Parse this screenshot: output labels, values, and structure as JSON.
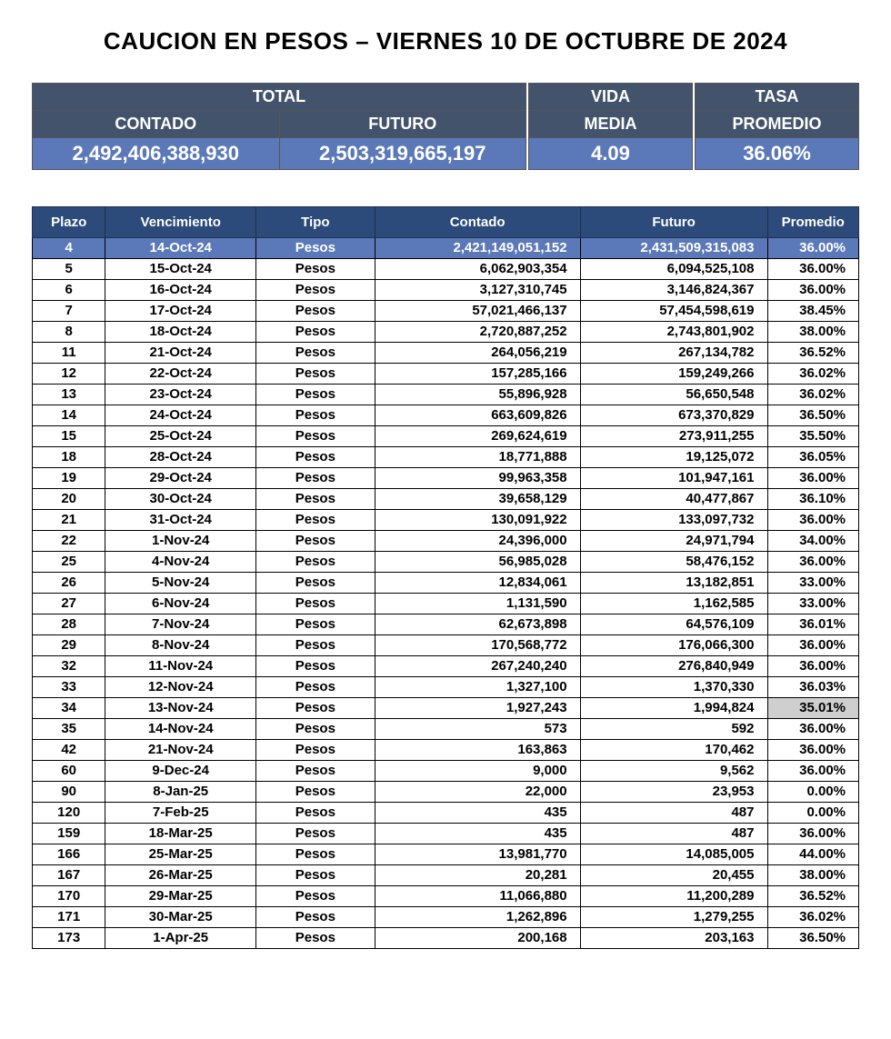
{
  "title": "CAUCION EN PESOS – VIERNES 10 DE OCTUBRE DE 2024",
  "colors": {
    "header_dark": "#42536b",
    "value_blue": "#5b79b8",
    "detail_header": "#2c4a7a",
    "gray_cell": "#cfcfcf",
    "text": "#000000",
    "white": "#ffffff"
  },
  "summary": {
    "labels": {
      "total": "TOTAL",
      "contado": "CONTADO",
      "futuro": "FUTURO",
      "vida": "VIDA",
      "media": "MEDIA",
      "tasa": "TASA",
      "promedio": "PROMEDIO"
    },
    "values": {
      "contado": "2,492,406,388,930",
      "futuro": "2,503,319,665,197",
      "vida_media": "4.09",
      "tasa_promedio": "36.06%"
    }
  },
  "detail": {
    "columns": [
      "Plazo",
      "Vencimiento",
      "Tipo",
      "Contado",
      "Futuro",
      "Promedio"
    ],
    "highlight_row_index": 0,
    "gray_promedio_row_index": 21,
    "rows": [
      [
        "4",
        "14-Oct-24",
        "Pesos",
        "2,421,149,051,152",
        "2,431,509,315,083",
        "36.00%"
      ],
      [
        "5",
        "15-Oct-24",
        "Pesos",
        "6,062,903,354",
        "6,094,525,108",
        "36.00%"
      ],
      [
        "6",
        "16-Oct-24",
        "Pesos",
        "3,127,310,745",
        "3,146,824,367",
        "36.00%"
      ],
      [
        "7",
        "17-Oct-24",
        "Pesos",
        "57,021,466,137",
        "57,454,598,619",
        "38.45%"
      ],
      [
        "8",
        "18-Oct-24",
        "Pesos",
        "2,720,887,252",
        "2,743,801,902",
        "38.00%"
      ],
      [
        "11",
        "21-Oct-24",
        "Pesos",
        "264,056,219",
        "267,134,782",
        "36.52%"
      ],
      [
        "12",
        "22-Oct-24",
        "Pesos",
        "157,285,166",
        "159,249,266",
        "36.02%"
      ],
      [
        "13",
        "23-Oct-24",
        "Pesos",
        "55,896,928",
        "56,650,548",
        "36.02%"
      ],
      [
        "14",
        "24-Oct-24",
        "Pesos",
        "663,609,826",
        "673,370,829",
        "36.50%"
      ],
      [
        "15",
        "25-Oct-24",
        "Pesos",
        "269,624,619",
        "273,911,255",
        "35.50%"
      ],
      [
        "18",
        "28-Oct-24",
        "Pesos",
        "18,771,888",
        "19,125,072",
        "36.05%"
      ],
      [
        "19",
        "29-Oct-24",
        "Pesos",
        "99,963,358",
        "101,947,161",
        "36.00%"
      ],
      [
        "20",
        "30-Oct-24",
        "Pesos",
        "39,658,129",
        "40,477,867",
        "36.10%"
      ],
      [
        "21",
        "31-Oct-24",
        "Pesos",
        "130,091,922",
        "133,097,732",
        "36.00%"
      ],
      [
        "22",
        "1-Nov-24",
        "Pesos",
        "24,396,000",
        "24,971,794",
        "34.00%"
      ],
      [
        "25",
        "4-Nov-24",
        "Pesos",
        "56,985,028",
        "58,476,152",
        "36.00%"
      ],
      [
        "26",
        "5-Nov-24",
        "Pesos",
        "12,834,061",
        "13,182,851",
        "33.00%"
      ],
      [
        "27",
        "6-Nov-24",
        "Pesos",
        "1,131,590",
        "1,162,585",
        "33.00%"
      ],
      [
        "28",
        "7-Nov-24",
        "Pesos",
        "62,673,898",
        "64,576,109",
        "36.01%"
      ],
      [
        "29",
        "8-Nov-24",
        "Pesos",
        "170,568,772",
        "176,066,300",
        "36.00%"
      ],
      [
        "32",
        "11-Nov-24",
        "Pesos",
        "267,240,240",
        "276,840,949",
        "36.00%"
      ],
      [
        "33",
        "12-Nov-24",
        "Pesos",
        "1,327,100",
        "1,370,330",
        "36.03%"
      ],
      [
        "34",
        "13-Nov-24",
        "Pesos",
        "1,927,243",
        "1,994,824",
        "35.01%"
      ],
      [
        "35",
        "14-Nov-24",
        "Pesos",
        "573",
        "592",
        "36.00%"
      ],
      [
        "42",
        "21-Nov-24",
        "Pesos",
        "163,863",
        "170,462",
        "36.00%"
      ],
      [
        "60",
        "9-Dec-24",
        "Pesos",
        "9,000",
        "9,562",
        "36.00%"
      ],
      [
        "90",
        "8-Jan-25",
        "Pesos",
        "22,000",
        "23,953",
        "0.00%"
      ],
      [
        "120",
        "7-Feb-25",
        "Pesos",
        "435",
        "487",
        "0.00%"
      ],
      [
        "159",
        "18-Mar-25",
        "Pesos",
        "435",
        "487",
        "36.00%"
      ],
      [
        "166",
        "25-Mar-25",
        "Pesos",
        "13,981,770",
        "14,085,005",
        "44.00%"
      ],
      [
        "167",
        "26-Mar-25",
        "Pesos",
        "20,281",
        "20,455",
        "38.00%"
      ],
      [
        "170",
        "29-Mar-25",
        "Pesos",
        "11,066,880",
        "11,200,289",
        "36.52%"
      ],
      [
        "171",
        "30-Mar-25",
        "Pesos",
        "1,262,896",
        "1,279,255",
        "36.02%"
      ],
      [
        "173",
        "1-Apr-25",
        "Pesos",
        "200,168",
        "203,163",
        "36.50%"
      ]
    ]
  }
}
